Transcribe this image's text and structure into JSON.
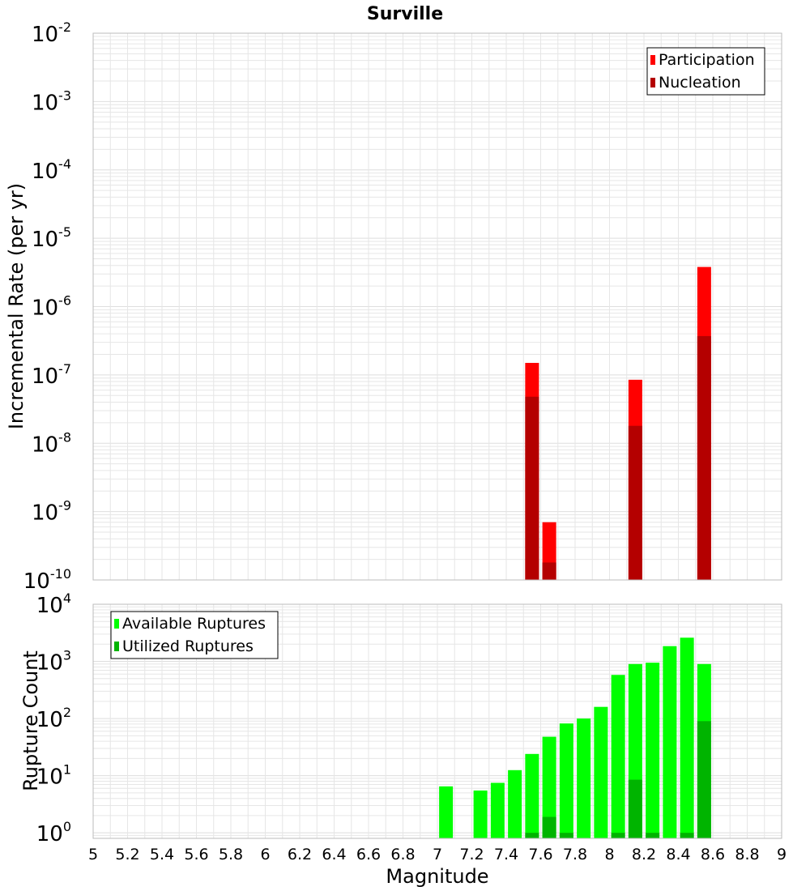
{
  "title": "Surville",
  "colors": {
    "participation": "#ff0000",
    "nucleation": "#b40000",
    "available": "#00ff00",
    "utilized": "#00b400",
    "grid": "#e6e6e6",
    "frame": "#bbbbbb"
  },
  "chart_data": [
    {
      "type": "bar",
      "name": "rates",
      "ylabel": "Incremental Rate (per yr)",
      "yscale": "log",
      "ylim": [
        1e-10,
        0.01
      ],
      "xlim": [
        5,
        9
      ],
      "grid": true,
      "legend_position": "top-right",
      "yticks": [
        {
          "base": "10",
          "exp": "-10",
          "value": 1e-10
        },
        {
          "base": "10",
          "exp": "-9",
          "value": 1e-09
        },
        {
          "base": "10",
          "exp": "-8",
          "value": 1e-08
        },
        {
          "base": "10",
          "exp": "-7",
          "value": 1e-07
        },
        {
          "base": "10",
          "exp": "-6",
          "value": 1e-06
        },
        {
          "base": "10",
          "exp": "-5",
          "value": 1e-05
        },
        {
          "base": "10",
          "exp": "-4",
          "value": 0.0001
        },
        {
          "base": "10",
          "exp": "-3",
          "value": 0.001
        },
        {
          "base": "10",
          "exp": "-2",
          "value": 0.01
        }
      ],
      "series": [
        {
          "name": "Participation",
          "color": "#ff0000",
          "points": [
            [
              7.55,
              1.5e-07
            ],
            [
              7.65,
              7e-10
            ],
            [
              8.15,
              8.5e-08
            ],
            [
              8.55,
              3.8e-06
            ]
          ]
        },
        {
          "name": "Nucleation",
          "color": "#b40000",
          "points": [
            [
              7.55,
              4.8e-08
            ],
            [
              7.65,
              1.8e-10
            ],
            [
              8.15,
              1.8e-08
            ],
            [
              8.55,
              3.7e-07
            ]
          ]
        }
      ]
    },
    {
      "type": "bar",
      "name": "counts",
      "ylabel": "Rupture Count",
      "xlabel": "Magnitude",
      "yscale": "log",
      "ylim": [
        0.8,
        10000
      ],
      "xlim": [
        5,
        9
      ],
      "grid": true,
      "legend_position": "top-left",
      "xticks": [
        "5",
        "5.2",
        "5.4",
        "5.6",
        "5.8",
        "6",
        "6.2",
        "6.4",
        "6.6",
        "6.8",
        "7",
        "7.2",
        "7.4",
        "7.6",
        "7.8",
        "8",
        "8.2",
        "8.4",
        "8.6",
        "8.8",
        "9"
      ],
      "yticks": [
        {
          "base": "10",
          "exp": "0",
          "value": 1
        },
        {
          "base": "10",
          "exp": "1",
          "value": 10
        },
        {
          "base": "10",
          "exp": "2",
          "value": 100
        },
        {
          "base": "10",
          "exp": "3",
          "value": 1000
        },
        {
          "base": "10",
          "exp": "4",
          "value": 10000
        }
      ],
      "series": [
        {
          "name": "Available Ruptures",
          "color": "#00ff00",
          "points": [
            [
              7.05,
              6.5
            ],
            [
              7.25,
              5.5
            ],
            [
              7.35,
              7.5
            ],
            [
              7.45,
              12.5
            ],
            [
              7.55,
              24
            ],
            [
              7.65,
              48
            ],
            [
              7.75,
              82
            ],
            [
              7.85,
              100
            ],
            [
              7.95,
              160
            ],
            [
              8.05,
              580
            ],
            [
              8.15,
              900
            ],
            [
              8.25,
              950
            ],
            [
              8.35,
              1850
            ],
            [
              8.45,
              2600
            ],
            [
              8.55,
              900
            ]
          ]
        },
        {
          "name": "Utilized Ruptures",
          "color": "#00b400",
          "points": [
            [
              7.55,
              1
            ],
            [
              7.65,
              1.9
            ],
            [
              7.75,
              1
            ],
            [
              8.05,
              1
            ],
            [
              8.15,
              8.5
            ],
            [
              8.25,
              1
            ],
            [
              8.45,
              1
            ],
            [
              8.55,
              90
            ]
          ]
        }
      ]
    }
  ]
}
